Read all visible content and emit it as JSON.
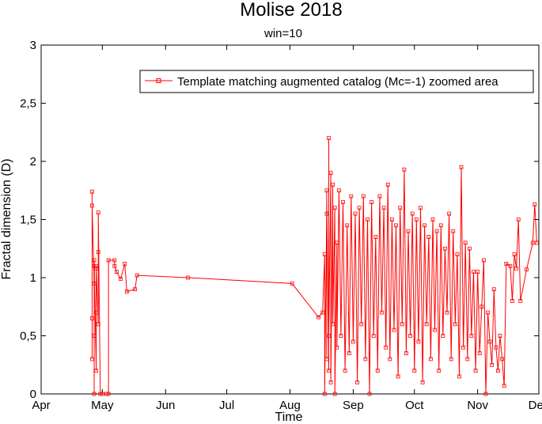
{
  "chart_data": {
    "type": "line",
    "title": "Molise 2018",
    "subtitle": "win=10",
    "xlabel": "Time",
    "ylabel": "Fractal dimension (D)",
    "ylim": [
      0,
      3
    ],
    "yticks": [
      0,
      0.5,
      1,
      1.5,
      2,
      2.5,
      3
    ],
    "ytick_labels": [
      "0",
      "0,5",
      "1",
      "1,5",
      "2",
      "2,5",
      "3"
    ],
    "xlim": [
      "2018-04-01",
      "2018-12-01"
    ],
    "xticks": [
      "2018-04-01",
      "2018-05-01",
      "2018-06-01",
      "2018-07-01",
      "2018-08-01",
      "2018-09-01",
      "2018-10-01",
      "2018-11-01",
      "2018-12-01"
    ],
    "xtick_labels": [
      "Apr",
      "May",
      "Jun",
      "Jul",
      "Aug",
      "Sep",
      "Oct",
      "Nov",
      "Dec"
    ],
    "grid": false,
    "legend_position": "top-right",
    "series": [
      {
        "name": "Template matching augmented catalog (Mc=-1) zoomed area",
        "color": "#ff0000",
        "marker": "square",
        "points": [
          [
            "2018-04-26",
            0.65
          ],
          [
            "2018-04-26",
            1.74
          ],
          [
            "2018-04-26",
            0.3
          ],
          [
            "2018-04-26",
            1.62
          ],
          [
            "2018-04-27",
            0.95
          ],
          [
            "2018-04-27",
            0.0
          ],
          [
            "2018-04-27",
            1.1
          ],
          [
            "2018-04-27",
            0.5
          ],
          [
            "2018-04-27",
            1.15
          ],
          [
            "2018-04-28",
            0.2
          ],
          [
            "2018-04-28",
            1.1
          ],
          [
            "2018-04-28",
            0.7
          ],
          [
            "2018-04-28",
            1.08
          ],
          [
            "2018-04-29",
            0.6
          ],
          [
            "2018-04-29",
            1.22
          ],
          [
            "2018-04-29",
            1.56
          ],
          [
            "2018-04-30",
            0.0
          ],
          [
            "2018-05-01",
            0.0
          ],
          [
            "2018-05-03",
            0.0
          ],
          [
            "2018-05-04",
            0.0
          ],
          [
            "2018-05-04",
            1.15
          ],
          [
            "2018-05-07",
            1.15
          ],
          [
            "2018-05-07",
            1.1
          ],
          [
            "2018-05-08",
            1.05
          ],
          [
            "2018-05-10",
            0.99
          ],
          [
            "2018-05-12",
            1.12
          ],
          [
            "2018-05-13",
            0.88
          ],
          [
            "2018-05-17",
            0.9
          ],
          [
            "2018-05-18",
            1.02
          ],
          [
            "2018-06-12",
            1.0
          ],
          [
            "2018-08-02",
            0.95
          ],
          [
            "2018-08-15",
            0.66
          ],
          [
            "2018-08-17",
            0.7
          ],
          [
            "2018-08-18",
            1.2
          ],
          [
            "2018-08-18",
            0.0
          ],
          [
            "2018-08-19",
            1.55
          ],
          [
            "2018-08-19",
            0.3
          ],
          [
            "2018-08-19",
            1.75
          ],
          [
            "2018-08-20",
            0.2
          ],
          [
            "2018-08-20",
            2.2
          ],
          [
            "2018-08-20",
            0.5
          ],
          [
            "2018-08-21",
            1.9
          ],
          [
            "2018-08-21",
            0.1
          ],
          [
            "2018-08-22",
            1.8
          ],
          [
            "2018-08-22",
            0.6
          ],
          [
            "2018-08-23",
            1.6
          ],
          [
            "2018-08-23",
            0.0
          ],
          [
            "2018-08-24",
            1.3
          ],
          [
            "2018-08-24",
            0.4
          ],
          [
            "2018-08-25",
            1.75
          ],
          [
            "2018-08-26",
            0.5
          ],
          [
            "2018-08-27",
            1.65
          ],
          [
            "2018-08-28",
            0.2
          ],
          [
            "2018-08-29",
            1.45
          ],
          [
            "2018-08-30",
            0.35
          ],
          [
            "2018-08-31",
            1.7
          ],
          [
            "2018-09-01",
            0.45
          ],
          [
            "2018-09-02",
            1.55
          ],
          [
            "2018-09-03",
            0.1
          ],
          [
            "2018-09-04",
            1.6
          ],
          [
            "2018-09-05",
            0.6
          ],
          [
            "2018-09-06",
            1.7
          ],
          [
            "2018-09-07",
            0.3
          ],
          [
            "2018-09-08",
            1.5
          ],
          [
            "2018-09-09",
            0.0
          ],
          [
            "2018-09-10",
            1.65
          ],
          [
            "2018-09-11",
            0.5
          ],
          [
            "2018-09-12",
            1.35
          ],
          [
            "2018-09-13",
            0.2
          ],
          [
            "2018-09-14",
            1.7
          ],
          [
            "2018-09-15",
            0.7
          ],
          [
            "2018-09-16",
            1.6
          ],
          [
            "2018-09-17",
            0.4
          ],
          [
            "2018-09-18",
            1.8
          ],
          [
            "2018-09-19",
            0.3
          ],
          [
            "2018-09-20",
            1.5
          ],
          [
            "2018-09-21",
            0.55
          ],
          [
            "2018-09-22",
            1.45
          ],
          [
            "2018-09-23",
            0.15
          ],
          [
            "2018-09-24",
            1.6
          ],
          [
            "2018-09-25",
            0.6
          ],
          [
            "2018-09-26",
            1.93
          ],
          [
            "2018-09-27",
            0.35
          ],
          [
            "2018-09-28",
            1.4
          ],
          [
            "2018-09-29",
            0.5
          ],
          [
            "2018-09-30",
            1.55
          ],
          [
            "2018-10-01",
            0.2
          ],
          [
            "2018-10-02",
            1.5
          ],
          [
            "2018-10-03",
            0.45
          ],
          [
            "2018-10-04",
            1.6
          ],
          [
            "2018-10-05",
            0.1
          ],
          [
            "2018-10-06",
            1.45
          ],
          [
            "2018-10-07",
            0.6
          ],
          [
            "2018-10-08",
            1.35
          ],
          [
            "2018-10-09",
            0.3
          ],
          [
            "2018-10-10",
            1.5
          ],
          [
            "2018-10-11",
            0.55
          ],
          [
            "2018-10-12",
            1.4
          ],
          [
            "2018-10-13",
            0.2
          ],
          [
            "2018-10-14",
            1.45
          ],
          [
            "2018-10-15",
            0.5
          ],
          [
            "2018-10-16",
            1.25
          ],
          [
            "2018-10-17",
            0.7
          ],
          [
            "2018-10-18",
            1.55
          ],
          [
            "2018-10-19",
            0.3
          ],
          [
            "2018-10-20",
            1.4
          ],
          [
            "2018-10-21",
            0.6
          ],
          [
            "2018-10-22",
            1.2
          ],
          [
            "2018-10-23",
            0.15
          ],
          [
            "2018-10-24",
            1.95
          ],
          [
            "2018-10-25",
            0.4
          ],
          [
            "2018-10-26",
            1.3
          ],
          [
            "2018-10-27",
            0.3
          ],
          [
            "2018-10-28",
            1.25
          ],
          [
            "2018-10-29",
            0.5
          ],
          [
            "2018-10-30",
            1.05
          ],
          [
            "2018-10-31",
            0.2
          ],
          [
            "2018-11-01",
            1.05
          ],
          [
            "2018-11-02",
            0.35
          ],
          [
            "2018-11-03",
            0.75
          ],
          [
            "2018-11-04",
            1.15
          ],
          [
            "2018-11-05",
            0.0
          ],
          [
            "2018-11-06",
            0.7
          ],
          [
            "2018-11-07",
            0.45
          ],
          [
            "2018-11-08",
            0.25
          ],
          [
            "2018-11-09",
            0.9
          ],
          [
            "2018-11-10",
            0.4
          ],
          [
            "2018-11-11",
            0.2
          ],
          [
            "2018-11-12",
            0.5
          ],
          [
            "2018-11-13",
            0.3
          ],
          [
            "2018-11-14",
            0.07
          ],
          [
            "2018-11-15",
            1.12
          ],
          [
            "2018-11-17",
            1.1
          ],
          [
            "2018-11-18",
            0.8
          ],
          [
            "2018-11-19",
            1.2
          ],
          [
            "2018-11-20",
            1.08
          ],
          [
            "2018-11-21",
            1.5
          ],
          [
            "2018-11-22",
            0.8
          ],
          [
            "2018-11-25",
            1.07
          ],
          [
            "2018-11-28",
            1.3
          ],
          [
            "2018-11-29",
            1.63
          ],
          [
            "2018-11-30",
            1.3
          ]
        ]
      }
    ]
  }
}
